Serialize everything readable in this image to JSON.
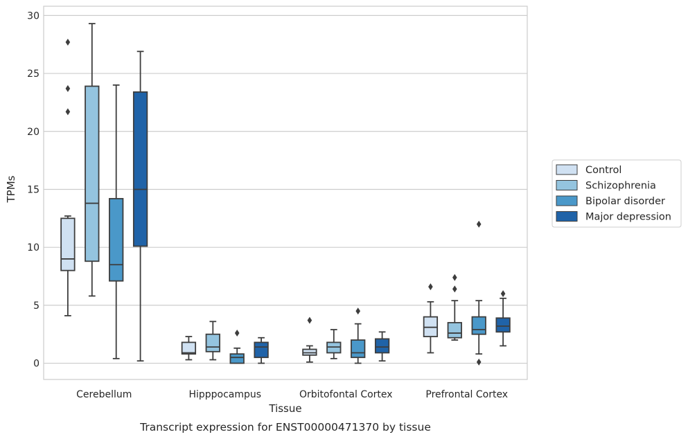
{
  "chart_data": {
    "type": "box",
    "xlabel": "Tissue",
    "ylabel": "TPMs",
    "caption": "Transcript expression for ENST00000471370 by tissue",
    "ylim": [
      -1.4,
      30.8
    ],
    "yticks": [
      0,
      5,
      10,
      15,
      20,
      25,
      30
    ],
    "grid": true,
    "legend_position": "right",
    "categories": [
      "Cerebellum",
      "Hipppocampus",
      "Orbitofontal Cortex",
      "Prefrontal Cortex"
    ],
    "series": [
      {
        "name": "Control",
        "color": "#d0e1f2",
        "boxes": [
          {
            "whisker_low": 4.1,
            "q1": 8.0,
            "median": 9.0,
            "q3": 12.5,
            "whisker_high": 12.7,
            "outliers": [
              21.7,
              23.7,
              27.7
            ]
          },
          {
            "whisker_low": 0.3,
            "q1": 0.8,
            "median": 0.9,
            "q3": 1.8,
            "whisker_high": 2.3,
            "outliers": []
          },
          {
            "whisker_low": 0.1,
            "q1": 0.7,
            "median": 0.9,
            "q3": 1.2,
            "whisker_high": 1.5,
            "outliers": [
              3.7
            ]
          },
          {
            "whisker_low": 0.9,
            "q1": 2.3,
            "median": 3.1,
            "q3": 4.0,
            "whisker_high": 5.3,
            "outliers": [
              6.6
            ]
          }
        ]
      },
      {
        "name": "Schizophrenia",
        "color": "#94c4df",
        "boxes": [
          {
            "whisker_low": 5.8,
            "q1": 8.8,
            "median": 13.8,
            "q3": 23.9,
            "whisker_high": 29.3,
            "outliers": []
          },
          {
            "whisker_low": 0.3,
            "q1": 1.0,
            "median": 1.4,
            "q3": 2.5,
            "whisker_high": 3.6,
            "outliers": []
          },
          {
            "whisker_low": 0.4,
            "q1": 0.9,
            "median": 1.4,
            "q3": 1.8,
            "whisker_high": 2.9,
            "outliers": []
          },
          {
            "whisker_low": 2.0,
            "q1": 2.2,
            "median": 2.6,
            "q3": 3.5,
            "whisker_high": 5.4,
            "outliers": [
              6.4,
              7.4
            ]
          }
        ]
      },
      {
        "name": "Bipolar disorder",
        "color": "#4a98c9",
        "boxes": [
          {
            "whisker_low": 0.4,
            "q1": 7.1,
            "median": 8.5,
            "q3": 14.2,
            "whisker_high": 24.0,
            "outliers": []
          },
          {
            "whisker_low": 0.0,
            "q1": 0.0,
            "median": 0.5,
            "q3": 0.8,
            "whisker_high": 1.3,
            "outliers": [
              2.6
            ]
          },
          {
            "whisker_low": 0.0,
            "q1": 0.5,
            "median": 0.9,
            "q3": 2.0,
            "whisker_high": 3.4,
            "outliers": [
              4.5
            ]
          },
          {
            "whisker_low": 0.8,
            "q1": 2.5,
            "median": 2.9,
            "q3": 4.0,
            "whisker_high": 5.4,
            "outliers": [
              0.1,
              12.0
            ]
          }
        ]
      },
      {
        "name": "Major depression",
        "color": "#2063a8",
        "boxes": [
          {
            "whisker_low": 0.2,
            "q1": 10.1,
            "median": 15.0,
            "q3": 23.4,
            "whisker_high": 26.9,
            "outliers": []
          },
          {
            "whisker_low": 0.0,
            "q1": 0.5,
            "median": 1.4,
            "q3": 1.8,
            "whisker_high": 2.2,
            "outliers": []
          },
          {
            "whisker_low": 0.2,
            "q1": 0.9,
            "median": 1.4,
            "q3": 2.1,
            "whisker_high": 2.7,
            "outliers": []
          },
          {
            "whisker_low": 1.5,
            "q1": 2.7,
            "median": 3.2,
            "q3": 3.9,
            "whisker_high": 5.6,
            "outliers": [
              6.0
            ]
          }
        ]
      }
    ]
  },
  "colors": {
    "grid": "#cccccc",
    "frame": "#cccccc",
    "stroke": "#3d3d3d",
    "outlier": "#3d3d3d"
  }
}
